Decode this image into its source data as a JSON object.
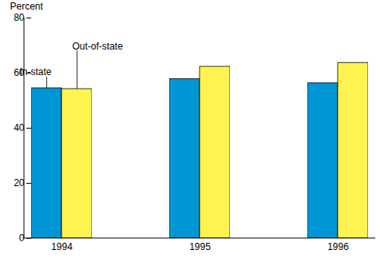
{
  "chart_data": {
    "type": "bar",
    "y_label": "Percent",
    "categories": [
      "1994",
      "1995",
      "1996"
    ],
    "series": [
      {
        "name": "In-state",
        "color": "#0096d6",
        "values": [
          54.5,
          57.8,
          56.3
        ]
      },
      {
        "name": "Out-of-state",
        "color": "#fff44f",
        "values": [
          54.2,
          62.3,
          63.7
        ]
      }
    ],
    "ylim": [
      0,
      80
    ],
    "yticks": [
      0,
      20,
      40,
      60,
      80
    ],
    "grid": false
  }
}
